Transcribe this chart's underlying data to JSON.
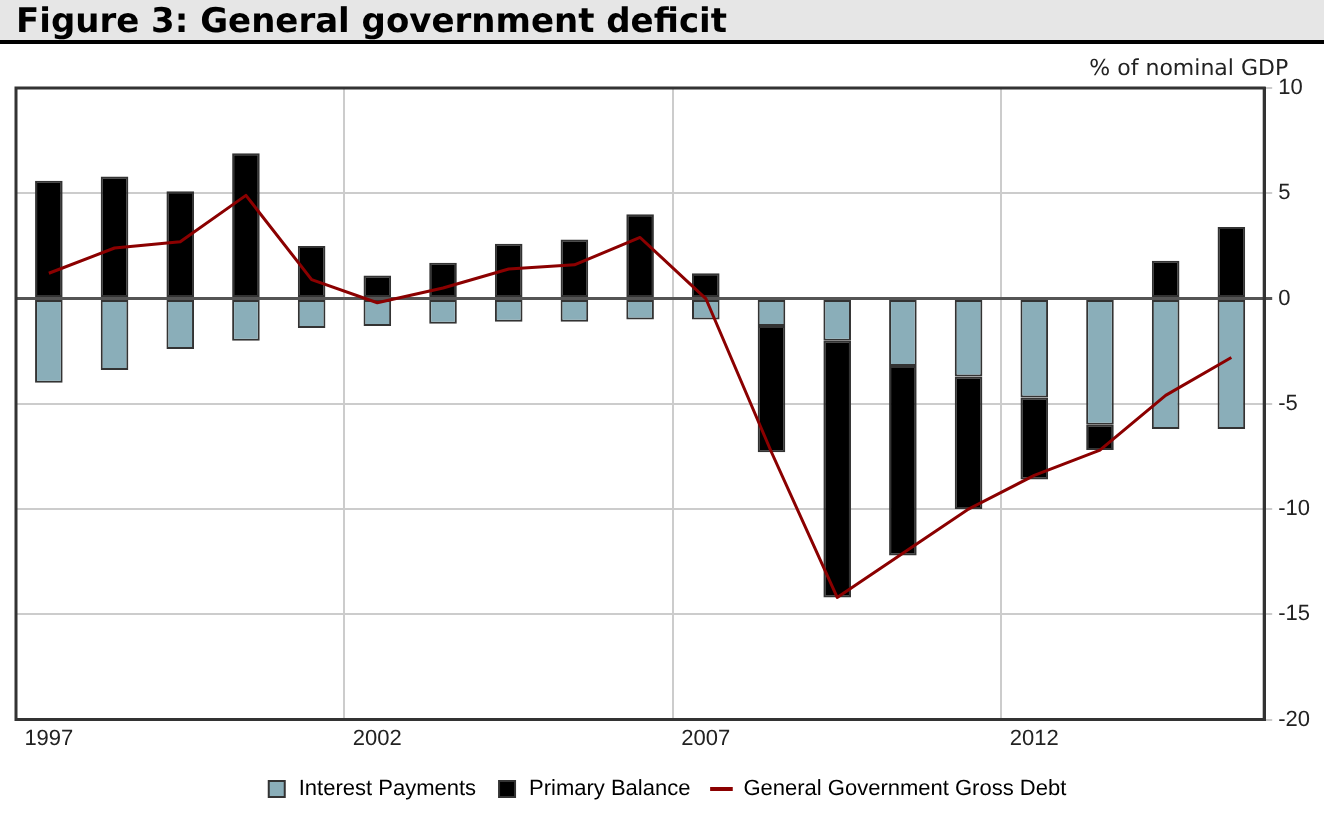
{
  "chart_data": {
    "type": "bar",
    "title": "Figure 3: General government deficit",
    "ylabel": "% of nominal GDP",
    "categories": [
      "1997",
      null,
      null,
      null,
      null,
      "2002",
      null,
      null,
      null,
      null,
      "2007",
      null,
      null,
      null,
      null,
      "2012",
      null,
      null,
      null
    ],
    "stacked": true,
    "series": [
      {
        "name": "Interest Payments",
        "color": "#8aaeb9",
        "values": [
          -4.0,
          -3.4,
          -2.4,
          -2.0,
          -1.4,
          -1.3,
          -1.2,
          -1.1,
          -1.1,
          -1.0,
          -1.0,
          -1.3,
          -2.0,
          -3.2,
          -3.7,
          -4.7,
          -6.0,
          -6.2,
          -6.2
        ]
      },
      {
        "name": "Primary Balance",
        "color": "#000000",
        "values": [
          5.6,
          5.8,
          5.1,
          6.9,
          2.5,
          1.1,
          1.7,
          2.6,
          2.8,
          4.0,
          1.2,
          -6.0,
          -12.2,
          -9.0,
          -6.3,
          -3.9,
          -1.2,
          1.8,
          3.4
        ]
      },
      {
        "name": "General Government Gross Debt",
        "type": "line",
        "color": "#8b0000",
        "values": [
          1.2,
          2.4,
          2.7,
          4.9,
          0.9,
          -0.2,
          0.5,
          1.4,
          1.6,
          2.9,
          0.0,
          -7.3,
          -14.2,
          -12.1,
          -10.0,
          -8.4,
          -7.2,
          -4.6,
          -2.8
        ]
      }
    ],
    "ylim": [
      -20,
      10
    ],
    "yticks": [
      -20,
      -15,
      -10,
      -5,
      0,
      5,
      10
    ],
    "grid": true,
    "legend": "bottom",
    "marker": "none"
  }
}
